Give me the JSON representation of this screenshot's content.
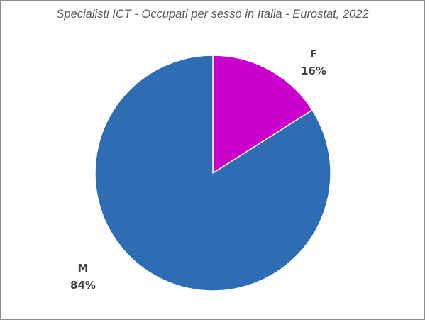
{
  "chart_data": {
    "type": "pie",
    "title": "Specialisti ICT - Occupati per sesso in Italia - Eurostat, 2022",
    "categories": [
      "F",
      "M"
    ],
    "values": [
      16,
      84
    ],
    "labels": [
      "16%",
      "84%"
    ],
    "colors": [
      "#cc00cc",
      "#2e6db4"
    ],
    "start": "12 o'clock",
    "direction": "clockwise",
    "legend": "none"
  }
}
